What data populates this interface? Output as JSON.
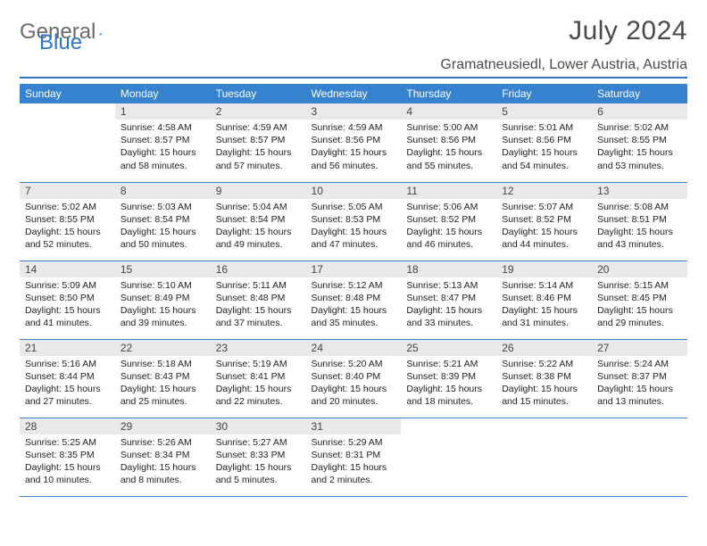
{
  "brand": {
    "part1": "General",
    "part2": "Blue"
  },
  "title": "July 2024",
  "location": "Gramatneusiedl, Lower Austria, Austria",
  "colors": {
    "header_bg": "#3782cf",
    "header_text": "#ffffff",
    "accent": "#2e75c8",
    "daynum_bg": "#e9e9e9",
    "text": "#222222",
    "muted": "#6b6b6b",
    "background": "#ffffff"
  },
  "weekdays": [
    "Sunday",
    "Monday",
    "Tuesday",
    "Wednesday",
    "Thursday",
    "Friday",
    "Saturday"
  ],
  "weeks": [
    [
      {
        "day": "",
        "sunrise": "",
        "sunset": "",
        "daylight": ""
      },
      {
        "day": "1",
        "sunrise": "Sunrise: 4:58 AM",
        "sunset": "Sunset: 8:57 PM",
        "daylight": "Daylight: 15 hours and 58 minutes."
      },
      {
        "day": "2",
        "sunrise": "Sunrise: 4:59 AM",
        "sunset": "Sunset: 8:57 PM",
        "daylight": "Daylight: 15 hours and 57 minutes."
      },
      {
        "day": "3",
        "sunrise": "Sunrise: 4:59 AM",
        "sunset": "Sunset: 8:56 PM",
        "daylight": "Daylight: 15 hours and 56 minutes."
      },
      {
        "day": "4",
        "sunrise": "Sunrise: 5:00 AM",
        "sunset": "Sunset: 8:56 PM",
        "daylight": "Daylight: 15 hours and 55 minutes."
      },
      {
        "day": "5",
        "sunrise": "Sunrise: 5:01 AM",
        "sunset": "Sunset: 8:56 PM",
        "daylight": "Daylight: 15 hours and 54 minutes."
      },
      {
        "day": "6",
        "sunrise": "Sunrise: 5:02 AM",
        "sunset": "Sunset: 8:55 PM",
        "daylight": "Daylight: 15 hours and 53 minutes."
      }
    ],
    [
      {
        "day": "7",
        "sunrise": "Sunrise: 5:02 AM",
        "sunset": "Sunset: 8:55 PM",
        "daylight": "Daylight: 15 hours and 52 minutes."
      },
      {
        "day": "8",
        "sunrise": "Sunrise: 5:03 AM",
        "sunset": "Sunset: 8:54 PM",
        "daylight": "Daylight: 15 hours and 50 minutes."
      },
      {
        "day": "9",
        "sunrise": "Sunrise: 5:04 AM",
        "sunset": "Sunset: 8:54 PM",
        "daylight": "Daylight: 15 hours and 49 minutes."
      },
      {
        "day": "10",
        "sunrise": "Sunrise: 5:05 AM",
        "sunset": "Sunset: 8:53 PM",
        "daylight": "Daylight: 15 hours and 47 minutes."
      },
      {
        "day": "11",
        "sunrise": "Sunrise: 5:06 AM",
        "sunset": "Sunset: 8:52 PM",
        "daylight": "Daylight: 15 hours and 46 minutes."
      },
      {
        "day": "12",
        "sunrise": "Sunrise: 5:07 AM",
        "sunset": "Sunset: 8:52 PM",
        "daylight": "Daylight: 15 hours and 44 minutes."
      },
      {
        "day": "13",
        "sunrise": "Sunrise: 5:08 AM",
        "sunset": "Sunset: 8:51 PM",
        "daylight": "Daylight: 15 hours and 43 minutes."
      }
    ],
    [
      {
        "day": "14",
        "sunrise": "Sunrise: 5:09 AM",
        "sunset": "Sunset: 8:50 PM",
        "daylight": "Daylight: 15 hours and 41 minutes."
      },
      {
        "day": "15",
        "sunrise": "Sunrise: 5:10 AM",
        "sunset": "Sunset: 8:49 PM",
        "daylight": "Daylight: 15 hours and 39 minutes."
      },
      {
        "day": "16",
        "sunrise": "Sunrise: 5:11 AM",
        "sunset": "Sunset: 8:48 PM",
        "daylight": "Daylight: 15 hours and 37 minutes."
      },
      {
        "day": "17",
        "sunrise": "Sunrise: 5:12 AM",
        "sunset": "Sunset: 8:48 PM",
        "daylight": "Daylight: 15 hours and 35 minutes."
      },
      {
        "day": "18",
        "sunrise": "Sunrise: 5:13 AM",
        "sunset": "Sunset: 8:47 PM",
        "daylight": "Daylight: 15 hours and 33 minutes."
      },
      {
        "day": "19",
        "sunrise": "Sunrise: 5:14 AM",
        "sunset": "Sunset: 8:46 PM",
        "daylight": "Daylight: 15 hours and 31 minutes."
      },
      {
        "day": "20",
        "sunrise": "Sunrise: 5:15 AM",
        "sunset": "Sunset: 8:45 PM",
        "daylight": "Daylight: 15 hours and 29 minutes."
      }
    ],
    [
      {
        "day": "21",
        "sunrise": "Sunrise: 5:16 AM",
        "sunset": "Sunset: 8:44 PM",
        "daylight": "Daylight: 15 hours and 27 minutes."
      },
      {
        "day": "22",
        "sunrise": "Sunrise: 5:18 AM",
        "sunset": "Sunset: 8:43 PM",
        "daylight": "Daylight: 15 hours and 25 minutes."
      },
      {
        "day": "23",
        "sunrise": "Sunrise: 5:19 AM",
        "sunset": "Sunset: 8:41 PM",
        "daylight": "Daylight: 15 hours and 22 minutes."
      },
      {
        "day": "24",
        "sunrise": "Sunrise: 5:20 AM",
        "sunset": "Sunset: 8:40 PM",
        "daylight": "Daylight: 15 hours and 20 minutes."
      },
      {
        "day": "25",
        "sunrise": "Sunrise: 5:21 AM",
        "sunset": "Sunset: 8:39 PM",
        "daylight": "Daylight: 15 hours and 18 minutes."
      },
      {
        "day": "26",
        "sunrise": "Sunrise: 5:22 AM",
        "sunset": "Sunset: 8:38 PM",
        "daylight": "Daylight: 15 hours and 15 minutes."
      },
      {
        "day": "27",
        "sunrise": "Sunrise: 5:24 AM",
        "sunset": "Sunset: 8:37 PM",
        "daylight": "Daylight: 15 hours and 13 minutes."
      }
    ],
    [
      {
        "day": "28",
        "sunrise": "Sunrise: 5:25 AM",
        "sunset": "Sunset: 8:35 PM",
        "daylight": "Daylight: 15 hours and 10 minutes."
      },
      {
        "day": "29",
        "sunrise": "Sunrise: 5:26 AM",
        "sunset": "Sunset: 8:34 PM",
        "daylight": "Daylight: 15 hours and 8 minutes."
      },
      {
        "day": "30",
        "sunrise": "Sunrise: 5:27 AM",
        "sunset": "Sunset: 8:33 PM",
        "daylight": "Daylight: 15 hours and 5 minutes."
      },
      {
        "day": "31",
        "sunrise": "Sunrise: 5:29 AM",
        "sunset": "Sunset: 8:31 PM",
        "daylight": "Daylight: 15 hours and 2 minutes."
      },
      {
        "day": "",
        "sunrise": "",
        "sunset": "",
        "daylight": ""
      },
      {
        "day": "",
        "sunrise": "",
        "sunset": "",
        "daylight": ""
      },
      {
        "day": "",
        "sunrise": "",
        "sunset": "",
        "daylight": ""
      }
    ]
  ]
}
